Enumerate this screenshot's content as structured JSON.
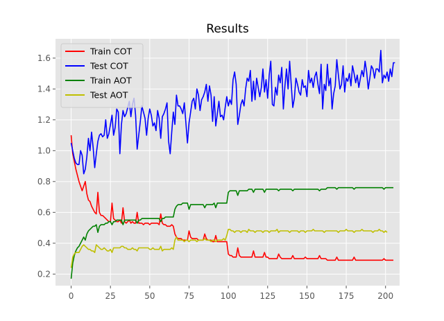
{
  "chart_data": {
    "type": "line",
    "title": "Results",
    "xlabel": "",
    "ylabel": "",
    "xlim": [
      -9.95,
      208.95
    ],
    "ylim": [
      0.125,
      1.725
    ],
    "x_ticks": [
      0,
      25,
      50,
      75,
      100,
      125,
      150,
      175,
      200
    ],
    "y_ticks": [
      0.2,
      0.4,
      0.6,
      0.8,
      1.0,
      1.2,
      1.4,
      1.6
    ],
    "grid": true,
    "legend_position": "top-left",
    "x_count": 200,
    "series": [
      {
        "name": "Train COT",
        "color": "#ff0000",
        "values": [
          1.1,
          0.98,
          0.93,
          0.88,
          0.84,
          0.8,
          0.77,
          0.74,
          0.77,
          0.8,
          0.72,
          0.68,
          0.67,
          0.64,
          0.62,
          0.6,
          0.59,
          0.73,
          0.6,
          0.58,
          0.58,
          0.57,
          0.56,
          0.55,
          0.54,
          0.54,
          0.66,
          0.56,
          0.55,
          0.54,
          0.54,
          0.55,
          0.53,
          0.63,
          0.54,
          0.53,
          0.54,
          0.55,
          0.53,
          0.54,
          0.53,
          0.53,
          0.6,
          0.53,
          0.53,
          0.53,
          0.52,
          0.53,
          0.53,
          0.53,
          0.52,
          0.53,
          0.53,
          0.53,
          0.53,
          0.53,
          0.52,
          0.59,
          0.53,
          0.52,
          0.52,
          0.51,
          0.51,
          0.51,
          0.52,
          0.51,
          0.46,
          0.44,
          0.43,
          0.43,
          0.43,
          0.42,
          0.42,
          0.42,
          0.42,
          0.48,
          0.44,
          0.43,
          0.43,
          0.43,
          0.43,
          0.42,
          0.42,
          0.42,
          0.42,
          0.46,
          0.43,
          0.42,
          0.42,
          0.42,
          0.41,
          0.41,
          0.45,
          0.41,
          0.41,
          0.41,
          0.41,
          0.41,
          0.41,
          0.41,
          0.33,
          0.32,
          0.32,
          0.31,
          0.31,
          0.31,
          0.37,
          0.32,
          0.31,
          0.31,
          0.31,
          0.31,
          0.31,
          0.31,
          0.31,
          0.31,
          0.35,
          0.31,
          0.31,
          0.31,
          0.31,
          0.31,
          0.31,
          0.34,
          0.31,
          0.31,
          0.3,
          0.3,
          0.3,
          0.3,
          0.3,
          0.3,
          0.33,
          0.31,
          0.3,
          0.3,
          0.3,
          0.3,
          0.3,
          0.3,
          0.3,
          0.32,
          0.3,
          0.3,
          0.3,
          0.3,
          0.3,
          0.3,
          0.3,
          0.31,
          0.3,
          0.3,
          0.3,
          0.3,
          0.3,
          0.3,
          0.3,
          0.3,
          0.32,
          0.3,
          0.3,
          0.3,
          0.3,
          0.29,
          0.29,
          0.29,
          0.29,
          0.29,
          0.29,
          0.31,
          0.29,
          0.29,
          0.29,
          0.29,
          0.29,
          0.29,
          0.29,
          0.29,
          0.29,
          0.29,
          0.31,
          0.29,
          0.29,
          0.29,
          0.29,
          0.29,
          0.29,
          0.29,
          0.29,
          0.29,
          0.29,
          0.29,
          0.29,
          0.29,
          0.29,
          0.29,
          0.29,
          0.29,
          0.29,
          0.3,
          0.29,
          0.29,
          0.29,
          0.29,
          0.29,
          0.29
        ]
      },
      {
        "name": "Test COT",
        "color": "#0000ff",
        "values": [
          1.05,
          1.0,
          0.95,
          0.92,
          0.91,
          0.91,
          1.0,
          0.97,
          0.85,
          0.88,
          0.96,
          1.08,
          1.0,
          1.12,
          1.02,
          0.89,
          0.98,
          1.06,
          1.1,
          1.11,
          1.09,
          1.1,
          1.2,
          1.08,
          1.11,
          1.17,
          1.23,
          1.1,
          1.15,
          1.27,
          1.25,
          0.98,
          1.17,
          1.26,
          1.22,
          1.24,
          1.28,
          1.32,
          1.22,
          1.3,
          1.34,
          1.23,
          1.01,
          1.1,
          1.19,
          1.29,
          1.25,
          1.21,
          1.1,
          1.21,
          1.27,
          1.23,
          1.16,
          1.18,
          1.13,
          1.26,
          1.21,
          1.08,
          1.22,
          1.24,
          1.27,
          1.31,
          1.06,
          0.98,
          1.12,
          1.25,
          1.17,
          1.36,
          1.29,
          1.29,
          1.27,
          1.24,
          1.31,
          1.18,
          1.05,
          1.18,
          1.25,
          1.32,
          1.34,
          1.27,
          1.4,
          1.36,
          1.26,
          1.33,
          1.35,
          1.38,
          1.43,
          1.32,
          1.42,
          1.36,
          1.19,
          1.35,
          1.16,
          1.24,
          1.32,
          1.22,
          1.23,
          1.2,
          1.28,
          1.35,
          1.29,
          1.33,
          1.3,
          1.46,
          1.51,
          1.43,
          1.17,
          1.23,
          1.3,
          1.33,
          1.29,
          1.4,
          1.47,
          1.45,
          1.52,
          1.32,
          1.45,
          1.33,
          1.47,
          1.41,
          1.35,
          1.41,
          1.53,
          1.38,
          1.46,
          1.34,
          1.49,
          1.58,
          1.3,
          1.29,
          1.41,
          1.36,
          1.49,
          1.44,
          1.54,
          1.27,
          1.42,
          1.53,
          1.4,
          1.58,
          1.43,
          1.28,
          1.34,
          1.47,
          1.43,
          1.38,
          1.36,
          1.46,
          1.41,
          1.42,
          1.35,
          1.52,
          1.44,
          1.47,
          1.41,
          1.48,
          1.51,
          1.43,
          1.37,
          1.56,
          1.27,
          1.43,
          1.39,
          1.56,
          1.42,
          1.47,
          1.27,
          1.37,
          1.42,
          1.59,
          1.49,
          1.4,
          1.43,
          1.55,
          1.38,
          1.47,
          1.45,
          1.5,
          1.42,
          1.55,
          1.5,
          1.44,
          1.49,
          1.41,
          1.47,
          1.52,
          1.48,
          1.58,
          1.51,
          1.4,
          1.47,
          1.55,
          1.53,
          1.47,
          1.53,
          1.53,
          1.51,
          1.65,
          1.44,
          1.49,
          1.47,
          1.51,
          1.45,
          1.53,
          1.48,
          1.57,
          1.57
        ]
      },
      {
        "name": "Train AOT",
        "color": "#008000",
        "values": [
          0.17,
          0.27,
          0.32,
          0.35,
          0.37,
          0.38,
          0.4,
          0.42,
          0.44,
          0.42,
          0.46,
          0.48,
          0.49,
          0.5,
          0.51,
          0.51,
          0.52,
          0.47,
          0.51,
          0.52,
          0.52,
          0.52,
          0.53,
          0.53,
          0.54,
          0.54,
          0.52,
          0.54,
          0.54,
          0.55,
          0.55,
          0.55,
          0.55,
          0.52,
          0.55,
          0.55,
          0.55,
          0.55,
          0.55,
          0.55,
          0.55,
          0.55,
          0.53,
          0.55,
          0.55,
          0.56,
          0.56,
          0.56,
          0.56,
          0.56,
          0.56,
          0.56,
          0.56,
          0.56,
          0.56,
          0.56,
          0.56,
          0.54,
          0.56,
          0.56,
          0.57,
          0.57,
          0.57,
          0.57,
          0.57,
          0.57,
          0.62,
          0.64,
          0.65,
          0.65,
          0.65,
          0.66,
          0.66,
          0.66,
          0.66,
          0.62,
          0.65,
          0.65,
          0.65,
          0.65,
          0.65,
          0.65,
          0.65,
          0.65,
          0.65,
          0.63,
          0.65,
          0.65,
          0.65,
          0.65,
          0.65,
          0.66,
          0.63,
          0.66,
          0.66,
          0.66,
          0.66,
          0.66,
          0.66,
          0.66,
          0.73,
          0.74,
          0.74,
          0.74,
          0.74,
          0.74,
          0.71,
          0.74,
          0.74,
          0.74,
          0.74,
          0.74,
          0.74,
          0.75,
          0.75,
          0.75,
          0.73,
          0.75,
          0.75,
          0.75,
          0.75,
          0.75,
          0.75,
          0.73,
          0.75,
          0.75,
          0.75,
          0.75,
          0.75,
          0.75,
          0.75,
          0.75,
          0.74,
          0.75,
          0.75,
          0.75,
          0.75,
          0.75,
          0.75,
          0.75,
          0.75,
          0.74,
          0.75,
          0.75,
          0.75,
          0.75,
          0.75,
          0.75,
          0.75,
          0.75,
          0.75,
          0.75,
          0.75,
          0.75,
          0.75,
          0.75,
          0.75,
          0.75,
          0.74,
          0.75,
          0.75,
          0.75,
          0.75,
          0.76,
          0.76,
          0.76,
          0.76,
          0.76,
          0.76,
          0.75,
          0.76,
          0.76,
          0.76,
          0.76,
          0.76,
          0.76,
          0.76,
          0.76,
          0.76,
          0.76,
          0.75,
          0.76,
          0.76,
          0.76,
          0.76,
          0.76,
          0.76,
          0.76,
          0.76,
          0.76,
          0.76,
          0.76,
          0.76,
          0.76,
          0.76,
          0.76,
          0.76,
          0.76,
          0.76,
          0.75,
          0.76,
          0.76,
          0.76,
          0.76,
          0.76,
          0.76
        ]
      },
      {
        "name": "Test AOT",
        "color": "#bfbf00",
        "values": [
          0.24,
          0.31,
          0.33,
          0.34,
          0.34,
          0.34,
          0.36,
          0.38,
          0.39,
          0.38,
          0.37,
          0.36,
          0.36,
          0.35,
          0.35,
          0.34,
          0.39,
          0.38,
          0.37,
          0.36,
          0.36,
          0.37,
          0.36,
          0.35,
          0.35,
          0.36,
          0.34,
          0.37,
          0.37,
          0.37,
          0.37,
          0.37,
          0.38,
          0.38,
          0.37,
          0.37,
          0.36,
          0.36,
          0.36,
          0.37,
          0.36,
          0.36,
          0.35,
          0.37,
          0.37,
          0.37,
          0.37,
          0.37,
          0.37,
          0.37,
          0.36,
          0.36,
          0.37,
          0.36,
          0.36,
          0.36,
          0.36,
          0.38,
          0.35,
          0.36,
          0.36,
          0.36,
          0.36,
          0.36,
          0.37,
          0.36,
          0.42,
          0.44,
          0.42,
          0.42,
          0.42,
          0.42,
          0.41,
          0.42,
          0.42,
          0.41,
          0.42,
          0.42,
          0.42,
          0.42,
          0.41,
          0.42,
          0.42,
          0.42,
          0.42,
          0.43,
          0.42,
          0.42,
          0.42,
          0.41,
          0.42,
          0.42,
          0.41,
          0.42,
          0.42,
          0.42,
          0.42,
          0.43,
          0.42,
          0.45,
          0.49,
          0.49,
          0.48,
          0.48,
          0.47,
          0.48,
          0.48,
          0.48,
          0.47,
          0.48,
          0.48,
          0.48,
          0.47,
          0.49,
          0.48,
          0.48,
          0.48,
          0.47,
          0.48,
          0.48,
          0.48,
          0.48,
          0.47,
          0.48,
          0.48,
          0.48,
          0.47,
          0.48,
          0.48,
          0.48,
          0.48,
          0.49,
          0.47,
          0.48,
          0.48,
          0.48,
          0.48,
          0.48,
          0.48,
          0.47,
          0.48,
          0.48,
          0.48,
          0.48,
          0.48,
          0.47,
          0.48,
          0.48,
          0.48,
          0.47,
          0.48,
          0.48,
          0.48,
          0.48,
          0.49,
          0.48,
          0.48,
          0.48,
          0.48,
          0.48,
          0.48,
          0.47,
          0.48,
          0.48,
          0.48,
          0.48,
          0.48,
          0.48,
          0.48,
          0.48,
          0.47,
          0.48,
          0.48,
          0.48,
          0.48,
          0.49,
          0.48,
          0.48,
          0.48,
          0.48,
          0.47,
          0.48,
          0.48,
          0.48,
          0.48,
          0.49,
          0.48,
          0.48,
          0.48,
          0.48,
          0.48,
          0.48,
          0.47,
          0.48,
          0.48,
          0.48,
          0.49,
          0.48,
          0.48,
          0.47,
          0.48,
          0.47
        ]
      }
    ]
  }
}
